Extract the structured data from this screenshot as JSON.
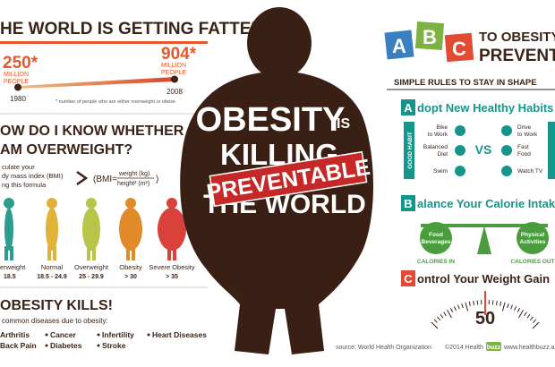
{
  "left": {
    "title": "HE WORLD IS GETTING FATTER",
    "stat_1980": {
      "value": "250*",
      "unit": [
        "MILLION",
        "PEOPLE"
      ],
      "year": "1980"
    },
    "stat_2008": {
      "value": "904*",
      "unit": [
        "MILLION",
        "PEOPLE"
      ],
      "year": "2008"
    },
    "footnote": "* number of people who are either overweight or obese",
    "bmi_title": [
      "OW DO I KNOW WHETHER",
      "AM OVERWEIGHT?"
    ],
    "bmi_text": [
      "culate your",
      "dy mass index (BMI)",
      "ng this formula"
    ],
    "formula": {
      "lhs": "(BMI=",
      "numerator": "weight (kg)",
      "denominator": "height² (m²)"
    },
    "figures": [
      {
        "label": "erweight",
        "range": "18.5"
      },
      {
        "label": "Normal",
        "range": "18.5 - 24.9"
      },
      {
        "label": "Overweight",
        "range": "25 - 29.9"
      },
      {
        "label": "Obesity",
        "range": "> 30"
      },
      {
        "label": "Severe Obesity",
        "range": "> 35"
      }
    ],
    "kills_title": "OBESITY KILLS!",
    "kills_text": "common diseases due to obesity:",
    "diseases": [
      "Arthritis",
      "Cancer",
      "Infertility",
      "Heart Diseases",
      "Back Pain",
      "Diabetes",
      "Stroke"
    ]
  },
  "center": {
    "line1": "OBESITY",
    "is": "IS",
    "line2": "KILLING",
    "ribbon": "PREVENTABLE",
    "line3": "THE WORLD"
  },
  "right": {
    "letters": [
      "A",
      "B",
      "C"
    ],
    "title": [
      "TO OBESITY",
      "PREVENTION"
    ],
    "subtitle": "SIMPLE RULES TO STAY IN SHAPE",
    "rule_a": {
      "letter": "A",
      "text": "dopt New Healthy Habits"
    },
    "good_habit": "GOOD HABIT",
    "good": [
      [
        "Bike",
        "to Work"
      ],
      [
        "Balanced",
        "Diet"
      ],
      [
        "Swim"
      ]
    ],
    "vs": "VS",
    "bad": [
      [
        "Drive",
        "to Work"
      ],
      [
        "Fast",
        "Food"
      ],
      [
        "Watch TV"
      ]
    ],
    "rule_b": {
      "letter": "B",
      "text": "alance Your Calorie Intake"
    },
    "balance": {
      "left": [
        "Food",
        "Beverages"
      ],
      "left_caption": "CALORIES IN",
      "right": [
        "Physical",
        "Activities"
      ],
      "right_caption": "CALORIES OUT"
    },
    "rule_c": {
      "letter": "C",
      "text": "ontrol Your Weight Gain"
    },
    "gauge": "50"
  },
  "footer": {
    "source": "source: World Health Organization",
    "copyright": "©2014 Health",
    "brand": "buzz",
    "url": "www.healthbuzz.a"
  }
}
